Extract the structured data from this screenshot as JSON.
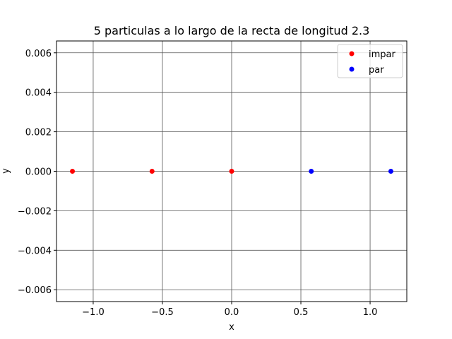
{
  "chart_data": {
    "type": "scatter",
    "title": "5 particulas a lo largo de la recta de longitud 2.3",
    "xlabel": "x",
    "ylabel": "y",
    "xlim": [
      -1.265,
      1.265
    ],
    "ylim": [
      -0.0066,
      0.0066
    ],
    "grid": true,
    "legend_position": "top-right",
    "x_ticks": [
      {
        "value": -1.0,
        "label": "−1.0"
      },
      {
        "value": -0.5,
        "label": "−0.5"
      },
      {
        "value": 0.0,
        "label": "0.0"
      },
      {
        "value": 0.5,
        "label": "0.5"
      },
      {
        "value": 1.0,
        "label": "1.0"
      }
    ],
    "y_ticks": [
      {
        "value": 0.006,
        "label": "0.006"
      },
      {
        "value": 0.004,
        "label": "0.004"
      },
      {
        "value": 0.002,
        "label": "0.002"
      },
      {
        "value": 0.0,
        "label": "0.000"
      },
      {
        "value": -0.002,
        "label": "−0.002"
      },
      {
        "value": -0.004,
        "label": "−0.004"
      },
      {
        "value": -0.006,
        "label": "−0.006"
      }
    ],
    "series": [
      {
        "name": "impar",
        "color": "#ff0000",
        "x": [
          -1.15,
          -0.575,
          0.0
        ],
        "y": [
          0.0,
          0.0,
          0.0
        ]
      },
      {
        "name": "par",
        "color": "#0000ff",
        "x": [
          0.575,
          1.15
        ],
        "y": [
          0.0,
          0.0
        ]
      }
    ]
  }
}
